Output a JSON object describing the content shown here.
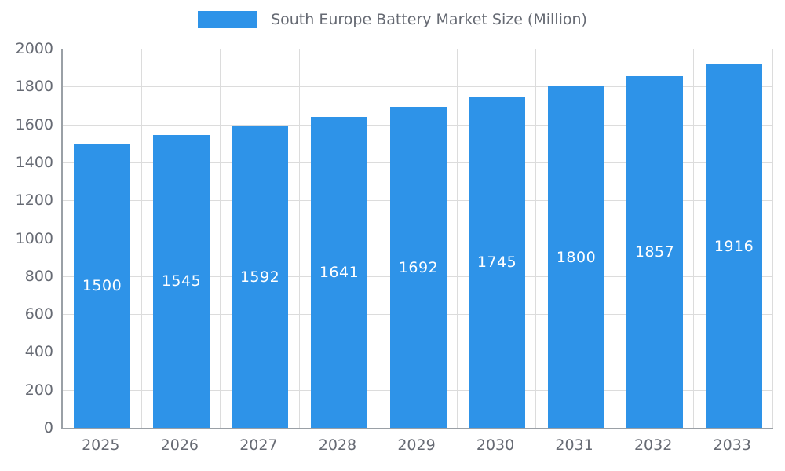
{
  "chart_data": {
    "type": "bar",
    "title": "South Europe Battery Market Size (Million)",
    "categories": [
      "2025",
      "2026",
      "2027",
      "2028",
      "2029",
      "2030",
      "2031",
      "2032",
      "2033"
    ],
    "values": [
      1500,
      1545,
      1592,
      1641,
      1692,
      1745,
      1800,
      1857,
      1916
    ],
    "xlabel": "",
    "ylabel": "",
    "ylim": [
      0,
      2000
    ],
    "yticks": [
      0,
      200,
      400,
      600,
      800,
      1000,
      1200,
      1400,
      1600,
      1800,
      2000
    ],
    "grid": true,
    "legend_position": "top",
    "colors": {
      "bar": "#2E93E8",
      "bar_label": "#ffffff",
      "axis_text": "#666a73",
      "grid_line": "#dcdcdc",
      "axis_line": "#9aa0a6"
    }
  }
}
